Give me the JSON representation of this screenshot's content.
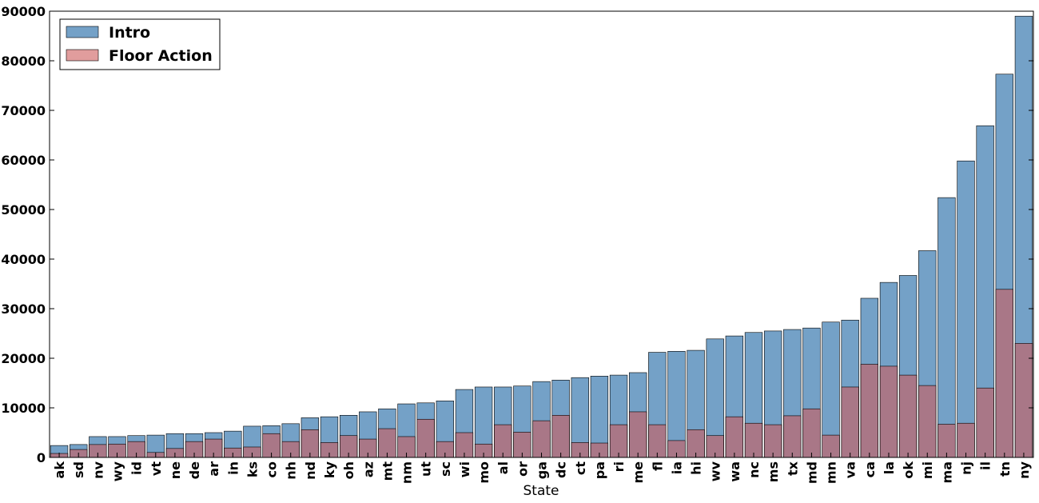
{
  "chart_data": {
    "type": "bar",
    "x_label": "State",
    "categories": [
      "ak",
      "sd",
      "nv",
      "wy",
      "id",
      "vt",
      "ne",
      "de",
      "ar",
      "in",
      "ks",
      "co",
      "nh",
      "nd",
      "ky",
      "oh",
      "az",
      "mt",
      "nm",
      "ut",
      "sc",
      "wi",
      "mo",
      "al",
      "or",
      "ga",
      "dc",
      "ct",
      "pa",
      "ri",
      "me",
      "fl",
      "ia",
      "hi",
      "wv",
      "wa",
      "nc",
      "ms",
      "tx",
      "md",
      "mn",
      "va",
      "ca",
      "la",
      "ok",
      "mi",
      "ma",
      "nj",
      "il",
      "tn",
      "ny"
    ],
    "series": [
      {
        "name": "Intro",
        "color": "#4682b4",
        "values": [
          2400,
          2600,
          4200,
          4200,
          4400,
          4500,
          4800,
          4800,
          5000,
          5300,
          6300,
          6400,
          6800,
          8000,
          8200,
          8500,
          9200,
          9800,
          10800,
          11000,
          11400,
          13700,
          14200,
          14200,
          14400,
          15300,
          15600,
          16100,
          16400,
          16600,
          17100,
          21200,
          21400,
          21600,
          23900,
          24500,
          25200,
          25500,
          25800,
          26100,
          27300,
          27700,
          32100,
          35300,
          36700,
          41700,
          52400,
          59800,
          66900,
          77300,
          89000
        ]
      },
      {
        "name": "Floor Action",
        "color": "#cd5c5c",
        "values": [
          800,
          1600,
          2600,
          2700,
          3200,
          1000,
          1800,
          3200,
          3700,
          1900,
          2100,
          4800,
          3200,
          5600,
          3000,
          4400,
          3700,
          5800,
          4200,
          7700,
          3200,
          5000,
          2700,
          6600,
          5100,
          7400,
          8500,
          3000,
          2900,
          6600,
          9200,
          6600,
          3400,
          5600,
          4400,
          8200,
          6900,
          6600,
          8400,
          9800,
          4500,
          14200,
          18800,
          18400,
          16600,
          14500,
          6700,
          6900,
          14000,
          33900,
          23000
        ]
      }
    ],
    "ylim": [
      0,
      90000
    ],
    "yticks": [
      0,
      10000,
      20000,
      30000,
      40000,
      50000,
      60000,
      70000,
      80000,
      90000
    ],
    "legend": "upper left"
  }
}
